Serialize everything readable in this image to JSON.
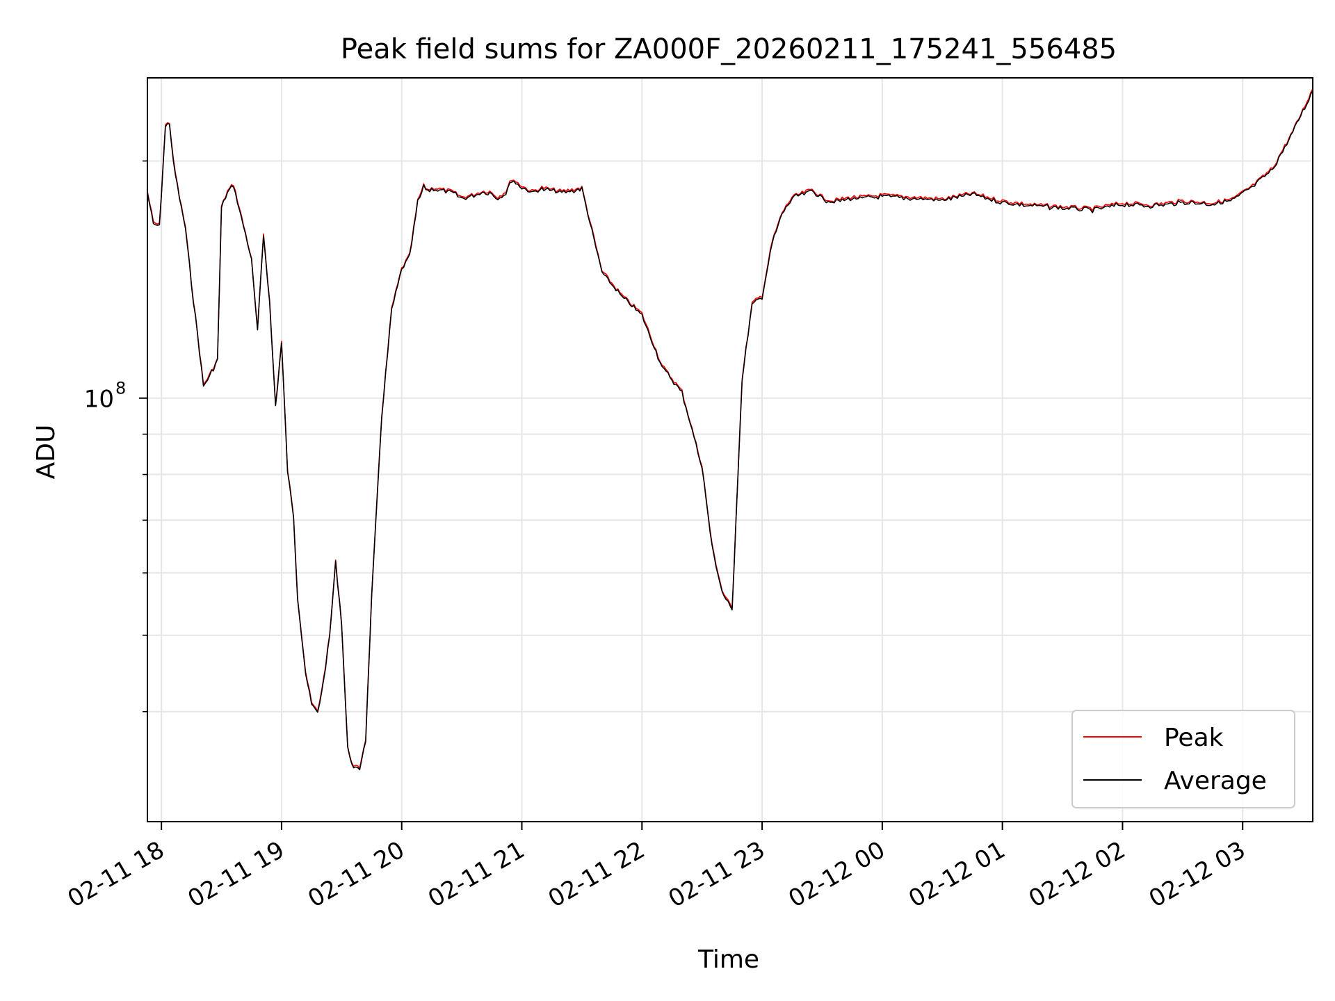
{
  "chart_data": {
    "type": "line",
    "title": "Peak field sums for ZA000F_20260211_175241_556485",
    "xlabel": "Time",
    "ylabel": "ADU",
    "x_ticks": [
      "02-11 18",
      "02-11 19",
      "02-11 20",
      "02-11 21",
      "02-11 22",
      "02-11 23",
      "02-12 00",
      "02-12 01",
      "02-12 02",
      "02-12 03"
    ],
    "x_tick_times": [
      "2026-02-11 18:00",
      "2026-02-11 19:00",
      "2026-02-11 20:00",
      "2026-02-11 21:00",
      "2026-02-11 22:00",
      "2026-02-11 23:00",
      "2026-02-12 00:00",
      "2026-02-12 01:00",
      "2026-02-12 02:00",
      "2026-02-12 03:00"
    ],
    "xlim": [
      "2026-02-11 17:53",
      "2026-02-12 03:35"
    ],
    "y_scale": "log",
    "ylim": [
      29000000,
      255000000
    ],
    "y_major_tick": {
      "value": 100000000,
      "base": "10",
      "exponent": "8"
    },
    "y_minor_ticks": [
      40000000,
      50000000,
      60000000,
      70000000,
      80000000,
      90000000,
      200000000
    ],
    "grid": true,
    "legend_position": "lower-right",
    "series": [
      {
        "name": "Peak",
        "color": "#ff0000",
        "x": [
          "2026-02-11 17:53",
          "2026-02-11 17:56",
          "2026-02-11 17:59",
          "2026-02-11 18:02",
          "2026-02-11 18:04",
          "2026-02-11 18:06",
          "2026-02-11 18:09",
          "2026-02-11 18:12",
          "2026-02-11 18:15",
          "2026-02-11 18:18",
          "2026-02-11 18:21",
          "2026-02-11 18:24",
          "2026-02-11 18:28",
          "2026-02-11 18:30",
          "2026-02-11 18:33",
          "2026-02-11 18:36",
          "2026-02-11 18:39",
          "2026-02-11 18:42",
          "2026-02-11 18:45",
          "2026-02-11 18:48",
          "2026-02-11 18:51",
          "2026-02-11 18:54",
          "2026-02-11 18:57",
          "2026-02-11 19:00",
          "2026-02-11 19:03",
          "2026-02-11 19:06",
          "2026-02-11 19:08",
          "2026-02-11 19:12",
          "2026-02-11 19:15",
          "2026-02-11 19:18",
          "2026-02-11 19:21",
          "2026-02-11 19:24",
          "2026-02-11 19:27",
          "2026-02-11 19:30",
          "2026-02-11 19:33",
          "2026-02-11 19:36",
          "2026-02-11 19:39",
          "2026-02-11 19:42",
          "2026-02-11 19:45",
          "2026-02-11 19:50",
          "2026-02-11 19:55",
          "2026-02-11 20:00",
          "2026-02-11 20:04",
          "2026-02-11 20:08",
          "2026-02-11 20:11",
          "2026-02-11 20:13",
          "2026-02-11 20:16",
          "2026-02-11 20:20",
          "2026-02-11 20:25",
          "2026-02-11 20:30",
          "2026-02-11 20:35",
          "2026-02-11 20:40",
          "2026-02-11 20:44",
          "2026-02-11 20:48",
          "2026-02-11 20:52",
          "2026-02-11 20:55",
          "2026-02-11 21:00",
          "2026-02-11 21:05",
          "2026-02-11 21:10",
          "2026-02-11 21:20",
          "2026-02-11 21:30",
          "2026-02-11 21:40",
          "2026-02-11 21:50",
          "2026-02-11 22:00",
          "2026-02-11 22:10",
          "2026-02-11 22:20",
          "2026-02-11 22:30",
          "2026-02-11 22:35",
          "2026-02-11 22:40",
          "2026-02-11 22:45",
          "2026-02-11 22:50",
          "2026-02-11 22:55",
          "2026-02-11 23:00",
          "2026-02-11 23:05",
          "2026-02-11 23:10",
          "2026-02-11 23:15",
          "2026-02-11 23:20",
          "2026-02-11 23:25",
          "2026-02-11 23:30",
          "2026-02-11 23:35",
          "2026-02-11 23:40",
          "2026-02-11 23:45",
          "2026-02-11 23:50",
          "2026-02-12 00:00",
          "2026-02-12 00:15",
          "2026-02-12 00:30",
          "2026-02-12 00:45",
          "2026-02-12 01:00",
          "2026-02-12 01:15",
          "2026-02-12 01:30",
          "2026-02-12 01:45",
          "2026-02-12 02:00",
          "2026-02-12 02:15",
          "2026-02-12 02:30",
          "2026-02-12 02:45",
          "2026-02-12 02:55",
          "2026-02-12 03:05",
          "2026-02-12 03:15",
          "2026-02-12 03:25",
          "2026-02-12 03:35"
        ],
        "values": [
          183000000,
          167000000,
          166000000,
          222000000,
          224000000,
          200000000,
          180000000,
          165000000,
          140000000,
          121000000,
          104000000,
          107000000,
          112000000,
          175000000,
          183000000,
          187000000,
          174000000,
          162000000,
          150000000,
          122000000,
          162000000,
          133000000,
          98000000,
          118000000,
          81000000,
          71000000,
          56000000,
          45000000,
          41000000,
          40000000,
          44000000,
          50000000,
          62000000,
          52000000,
          36000000,
          34000000,
          34000000,
          37000000,
          56000000,
          95000000,
          130000000,
          146000000,
          152000000,
          178000000,
          186000000,
          184000000,
          185000000,
          184000000,
          183000000,
          180000000,
          181000000,
          183000000,
          183000000,
          180000000,
          183000000,
          190000000,
          186000000,
          183000000,
          185000000,
          183000000,
          185000000,
          145000000,
          135000000,
          128000000,
          110000000,
          102000000,
          82000000,
          65000000,
          57000000,
          54000000,
          106000000,
          132000000,
          135000000,
          158000000,
          172000000,
          180000000,
          182000000,
          184000000,
          180000000,
          178000000,
          179000000,
          180000000,
          180000000,
          181000000,
          180000000,
          179000000,
          182000000,
          178000000,
          176000000,
          175000000,
          174000000,
          177000000,
          176000000,
          178000000,
          177000000,
          179000000,
          186000000,
          196000000,
          218000000,
          247000000
        ],
        "note": ""
      },
      {
        "name": "Average",
        "color": "#000000"
      }
    ]
  }
}
